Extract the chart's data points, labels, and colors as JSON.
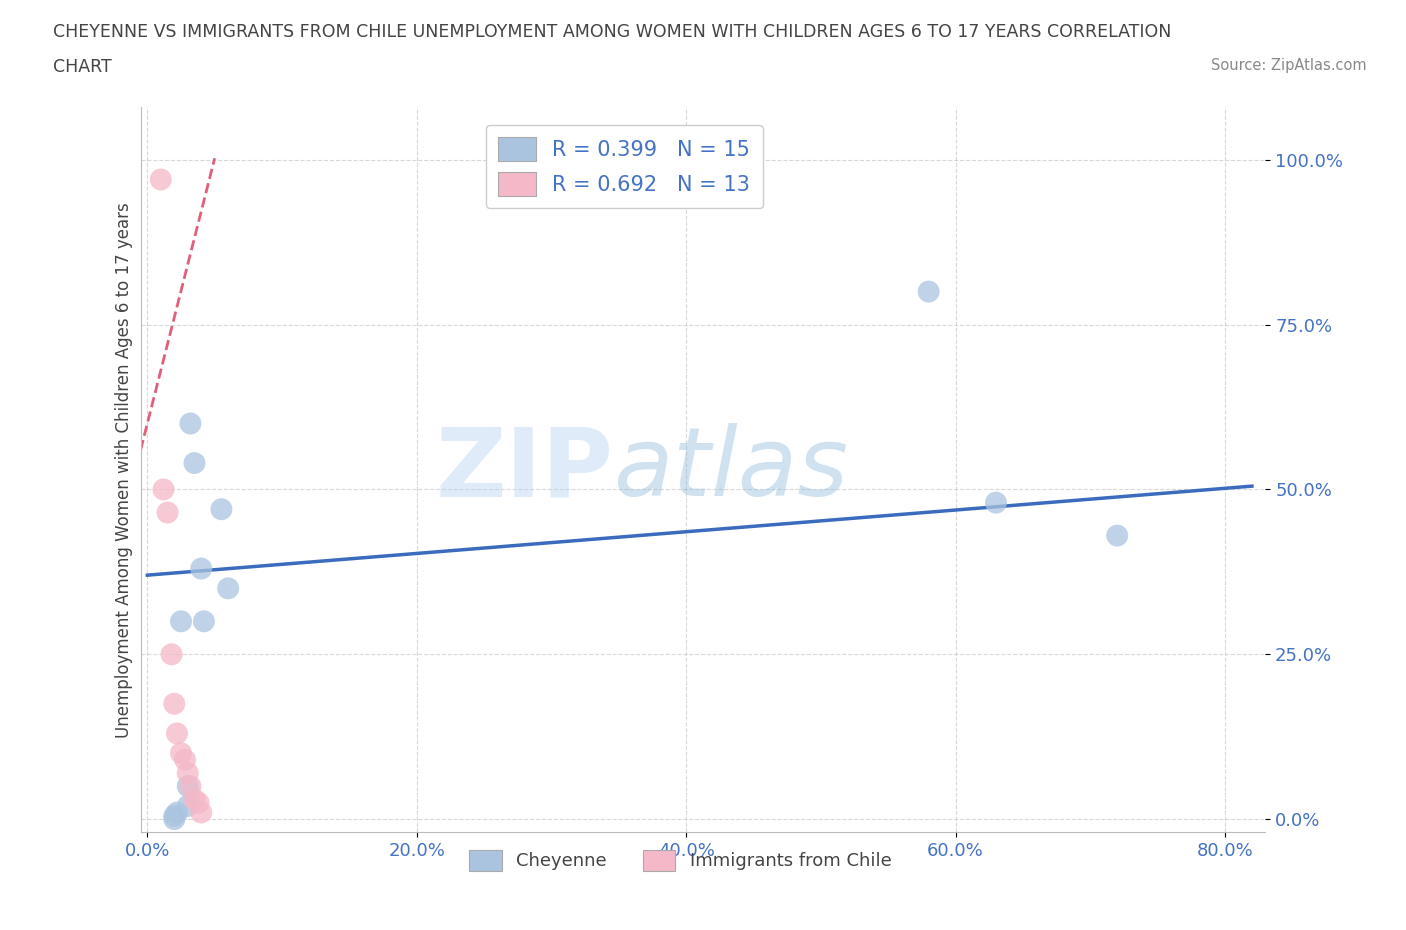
{
  "title_line1": "CHEYENNE VS IMMIGRANTS FROM CHILE UNEMPLOYMENT AMONG WOMEN WITH CHILDREN AGES 6 TO 17 YEARS CORRELATION",
  "title_line2": "CHART",
  "source_text": "Source: ZipAtlas.com",
  "ylabel": "Unemployment Among Women with Children Ages 6 to 17 years",
  "x_tick_labels": [
    "0.0%",
    "20.0%",
    "40.0%",
    "60.0%",
    "80.0%"
  ],
  "x_tick_vals": [
    0.0,
    0.2,
    0.4,
    0.6,
    0.8
  ],
  "y_tick_labels": [
    "0.0%",
    "25.0%",
    "50.0%",
    "75.0%",
    "100.0%"
  ],
  "y_tick_vals": [
    0.0,
    0.25,
    0.5,
    0.75,
    1.0
  ],
  "xlim": [
    -0.005,
    0.83
  ],
  "ylim": [
    -0.02,
    1.08
  ],
  "cheyenne_x": [
    0.02,
    0.02,
    0.022,
    0.025,
    0.03,
    0.03,
    0.032,
    0.035,
    0.04,
    0.042,
    0.055,
    0.06,
    0.58,
    0.63,
    0.72
  ],
  "cheyenne_y": [
    0.0,
    0.005,
    0.01,
    0.3,
    0.02,
    0.05,
    0.6,
    0.54,
    0.38,
    0.3,
    0.47,
    0.35,
    0.8,
    0.48,
    0.43
  ],
  "chile_x": [
    0.01,
    0.012,
    0.015,
    0.018,
    0.02,
    0.022,
    0.025,
    0.028,
    0.03,
    0.032,
    0.035,
    0.038,
    0.04
  ],
  "chile_y": [
    0.97,
    0.5,
    0.465,
    0.25,
    0.175,
    0.13,
    0.1,
    0.09,
    0.07,
    0.05,
    0.03,
    0.025,
    0.01
  ],
  "cheyenne_color": "#aac4e0",
  "chile_color": "#f4b8c8",
  "cheyenne_trend_color": "#3a6bbf",
  "chile_trend_color": "#e0607a",
  "cheyenne_trend_x0": 0.0,
  "cheyenne_trend_y0": 0.37,
  "cheyenne_trend_x1": 0.82,
  "cheyenne_trend_y1": 0.505,
  "chile_trend_x0": 0.0,
  "chile_trend_y0": 0.6,
  "chile_trend_x1": 0.046,
  "chile_trend_y1": 0.97,
  "R_cheyenne": 0.399,
  "N_cheyenne": 15,
  "R_chile": 0.692,
  "N_chile": 13,
  "legend_label_cheyenne": "Cheyenne",
  "legend_label_chile": "Immigrants from Chile",
  "watermark_zip": "ZIP",
  "watermark_atlas": "atlas",
  "background_color": "#ffffff",
  "grid_color": "#c8c8c8",
  "title_color": "#444444",
  "axis_label_color": "#444444",
  "tick_color": "#4472c4"
}
